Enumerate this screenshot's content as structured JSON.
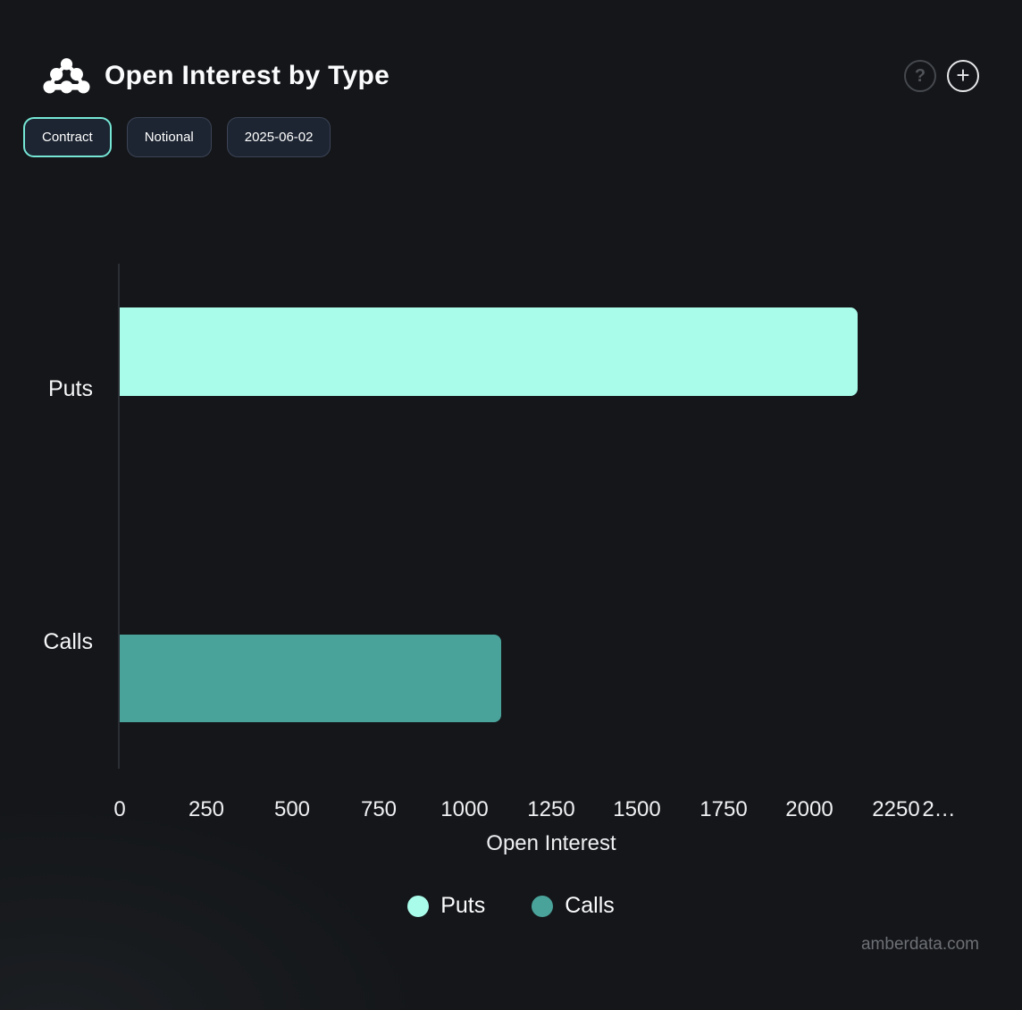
{
  "header": {
    "title": "Open Interest by Type",
    "icons": {
      "help_glyph": "?",
      "plus_glyph": "+"
    }
  },
  "toolbar": {
    "buttons": [
      {
        "label": "Contract",
        "name": "contract-toggle-button",
        "active": true
      },
      {
        "label": "Notional",
        "name": "notional-toggle-button",
        "active": false
      },
      {
        "label": "2025-06-02",
        "name": "date-filter-button",
        "active": false
      }
    ]
  },
  "chart_data": {
    "type": "bar",
    "orientation": "horizontal",
    "title": "Open Interest by Type",
    "categories": [
      "Puts",
      "Calls"
    ],
    "series": [
      {
        "name": "Puts",
        "value": 2140,
        "color": "#a9fbea"
      },
      {
        "name": "Calls",
        "value": 1105,
        "color": "#4aa39b"
      }
    ],
    "xlabel": "Open Interest",
    "ylabel": "",
    "xlim": [
      0,
      2500
    ],
    "x_ticks": [
      {
        "label": "0",
        "value": 0
      },
      {
        "label": "250",
        "value": 250
      },
      {
        "label": "500",
        "value": 500
      },
      {
        "label": "750",
        "value": 750
      },
      {
        "label": "1000",
        "value": 1000
      },
      {
        "label": "1250",
        "value": 1250
      },
      {
        "label": "1500",
        "value": 1500
      },
      {
        "label": "1750",
        "value": 1750
      },
      {
        "label": "2000",
        "value": 2000
      },
      {
        "label": "2250",
        "value": 2250
      },
      {
        "label": "2…",
        "value": 2375
      }
    ],
    "grid": false,
    "legend_position": "bottom",
    "legend": [
      "Puts",
      "Calls"
    ],
    "background": "#141619"
  },
  "footer": {
    "watermark": "amberdata.com"
  }
}
